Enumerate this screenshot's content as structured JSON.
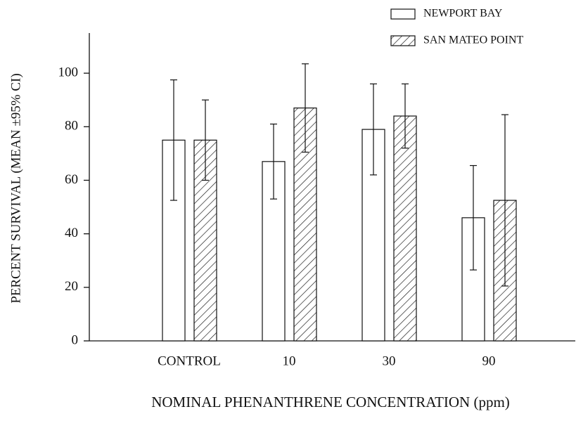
{
  "chart_data": {
    "type": "bar",
    "x_label": "NOMINAL PHENANTHRENE CONCENTRATION (ppm)",
    "y_label": "PERCENT SURVIVAL (MEAN ±95% CI)",
    "categories": [
      "CONTROL",
      "10",
      "30",
      "90"
    ],
    "series": [
      {
        "name": "NEWPORT BAY",
        "color": "#ffffff",
        "hatch": false,
        "values": [
          75,
          67,
          79,
          46
        ],
        "errors": [
          22.5,
          14,
          17,
          19.5
        ]
      },
      {
        "name": "SAN MATEO POINT",
        "color": "#ffffff",
        "hatch": true,
        "values": [
          75,
          87,
          84,
          52.5
        ],
        "errors": [
          15,
          16.5,
          12,
          32
        ]
      }
    ],
    "ylim": [
      0,
      115
    ],
    "yticks": [
      0,
      20,
      40,
      60,
      80,
      100
    ],
    "grid": false,
    "legend": "top-right"
  }
}
